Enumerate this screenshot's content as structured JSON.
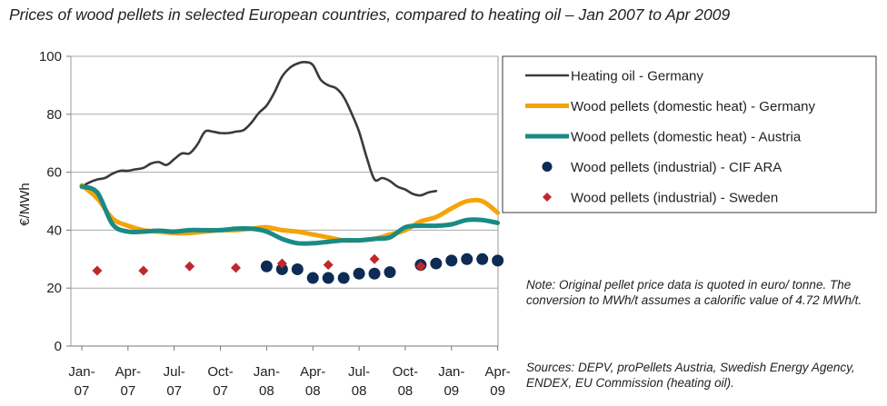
{
  "chart_data": {
    "type": "line",
    "title": "Prices of wood pellets in selected European countries, compared to heating oil – Jan 2007 to Apr 2009",
    "ylabel": "€/MWh",
    "xlabel": "",
    "ylim": [
      0,
      100
    ],
    "yticks": [
      0,
      20,
      40,
      60,
      80,
      100
    ],
    "xlim": [
      0,
      27.5
    ],
    "grid": true,
    "legend_position": "right",
    "xticks": [
      {
        "x": 0,
        "label": [
          "Jan-",
          "07"
        ]
      },
      {
        "x": 3,
        "label": [
          "Apr-",
          "07"
        ]
      },
      {
        "x": 6,
        "label": [
          "Jul-",
          "07"
        ]
      },
      {
        "x": 9,
        "label": [
          "Oct-",
          "07"
        ]
      },
      {
        "x": 12,
        "label": [
          "Jan-",
          "08"
        ]
      },
      {
        "x": 15,
        "label": [
          "Apr-",
          "08"
        ]
      },
      {
        "x": 18,
        "label": [
          "Jul-",
          "08"
        ]
      },
      {
        "x": 21,
        "label": [
          "Oct-",
          "08"
        ]
      },
      {
        "x": 24,
        "label": [
          "Jan-",
          "09"
        ]
      },
      {
        "x": 27,
        "label": [
          "Apr-",
          "09"
        ]
      }
    ],
    "series": [
      {
        "name": "Heating oil - Germany",
        "kind": "line",
        "color": "#3a3a3a",
        "points": [
          [
            0,
            55
          ],
          [
            0.5,
            56.5
          ],
          [
            1,
            57.5
          ],
          [
            1.5,
            58
          ],
          [
            2,
            59.5
          ],
          [
            2.5,
            60.5
          ],
          [
            3,
            60.5
          ],
          [
            3.5,
            61
          ],
          [
            4,
            61.5
          ],
          [
            4.5,
            63
          ],
          [
            5,
            63.5
          ],
          [
            5.5,
            62.5
          ],
          [
            6,
            64.5
          ],
          [
            6.5,
            66.5
          ],
          [
            7,
            66.5
          ],
          [
            7.5,
            69.5
          ],
          [
            8,
            74
          ],
          [
            8.5,
            74
          ],
          [
            9,
            73.5
          ],
          [
            9.5,
            73.5
          ],
          [
            10,
            74
          ],
          [
            10.5,
            74.5
          ],
          [
            11,
            77
          ],
          [
            11.5,
            80.5
          ],
          [
            12,
            83
          ],
          [
            12.5,
            87.5
          ],
          [
            13,
            93
          ],
          [
            13.5,
            96
          ],
          [
            14,
            97.5
          ],
          [
            14.5,
            98
          ],
          [
            15,
            97
          ],
          [
            15.5,
            92
          ],
          [
            16,
            90
          ],
          [
            16.5,
            89
          ],
          [
            17,
            86
          ],
          [
            17.5,
            80.5
          ],
          [
            18,
            74
          ],
          [
            18.5,
            65
          ],
          [
            19,
            57.5
          ],
          [
            19.5,
            58
          ],
          [
            20,
            57
          ],
          [
            20.5,
            55
          ],
          [
            21,
            54
          ],
          [
            21.5,
            52.5
          ],
          [
            22,
            52
          ],
          [
            22.5,
            53
          ],
          [
            23,
            53.5
          ]
        ]
      },
      {
        "name": "Wood pellets (domestic heat) - Germany",
        "kind": "line",
        "color": "#f5a30a",
        "points": [
          [
            0,
            55.5
          ],
          [
            1,
            51
          ],
          [
            2,
            44
          ],
          [
            3,
            41.5
          ],
          [
            4,
            40
          ],
          [
            5,
            39.5
          ],
          [
            6,
            39
          ],
          [
            7,
            39
          ],
          [
            8,
            39.5
          ],
          [
            9,
            40
          ],
          [
            10,
            40
          ],
          [
            11,
            40.5
          ],
          [
            12,
            41
          ],
          [
            13,
            40
          ],
          [
            14,
            39.5
          ],
          [
            15,
            38.5
          ],
          [
            16,
            37.5
          ],
          [
            17,
            36.5
          ],
          [
            18,
            36.5
          ],
          [
            19,
            37
          ],
          [
            20,
            38.5
          ],
          [
            21,
            40
          ],
          [
            22,
            43
          ],
          [
            23,
            44.5
          ],
          [
            24,
            47.5
          ],
          [
            25,
            50
          ],
          [
            26,
            50
          ],
          [
            27,
            46
          ]
        ]
      },
      {
        "name": "Wood pellets (domestic heat) - Austria",
        "kind": "line",
        "color": "#1a8a84",
        "points": [
          [
            0,
            55
          ],
          [
            1,
            53
          ],
          [
            2,
            42
          ],
          [
            3,
            39.5
          ],
          [
            4,
            39.5
          ],
          [
            5,
            39.8
          ],
          [
            6,
            39.5
          ],
          [
            7,
            40
          ],
          [
            8,
            40
          ],
          [
            9,
            40
          ],
          [
            10,
            40.5
          ],
          [
            11,
            40.5
          ],
          [
            12,
            39.5
          ],
          [
            13,
            37
          ],
          [
            14,
            35.5
          ],
          [
            15,
            35.5
          ],
          [
            16,
            36
          ],
          [
            17,
            36.5
          ],
          [
            18,
            36.5
          ],
          [
            19,
            37
          ],
          [
            20,
            37.5
          ],
          [
            21,
            41
          ],
          [
            22,
            41.5
          ],
          [
            23,
            41.5
          ],
          [
            24,
            42
          ],
          [
            25,
            43.5
          ],
          [
            26,
            43.5
          ],
          [
            27,
            42.5
          ]
        ]
      },
      {
        "name": "Wood pellets (industrial) - CIF ARA",
        "kind": "scatter-circle",
        "color": "#0d2b55",
        "points": [
          [
            12,
            27.5
          ],
          [
            13,
            26.5
          ],
          [
            14,
            26.5
          ],
          [
            15,
            23.5
          ],
          [
            16,
            23.5
          ],
          [
            17,
            23.5
          ],
          [
            18,
            25
          ],
          [
            19,
            25
          ],
          [
            20,
            25.5
          ],
          [
            22,
            28
          ],
          [
            23,
            28.5
          ],
          [
            24,
            29.5
          ],
          [
            25,
            30
          ],
          [
            26,
            30
          ],
          [
            27,
            29.5
          ]
        ]
      },
      {
        "name": "Wood pellets (industrial) - Sweden",
        "kind": "scatter-diamond",
        "color": "#c0282e",
        "points": [
          [
            1,
            26
          ],
          [
            4,
            26
          ],
          [
            7,
            27.5
          ],
          [
            10,
            27
          ],
          [
            13,
            28.5
          ],
          [
            16,
            28
          ],
          [
            19,
            30
          ],
          [
            22,
            27.5
          ]
        ]
      }
    ]
  },
  "note": "Note: Original pellet price data is quoted in euro/ tonne.  The conversion to MWh/t assumes a calorific value of 4.72 MWh/t.",
  "sources": "Sources: DEPV, proPellets Austria, Swedish Energy Agency, ENDEX, EU Commission (heating oil)."
}
